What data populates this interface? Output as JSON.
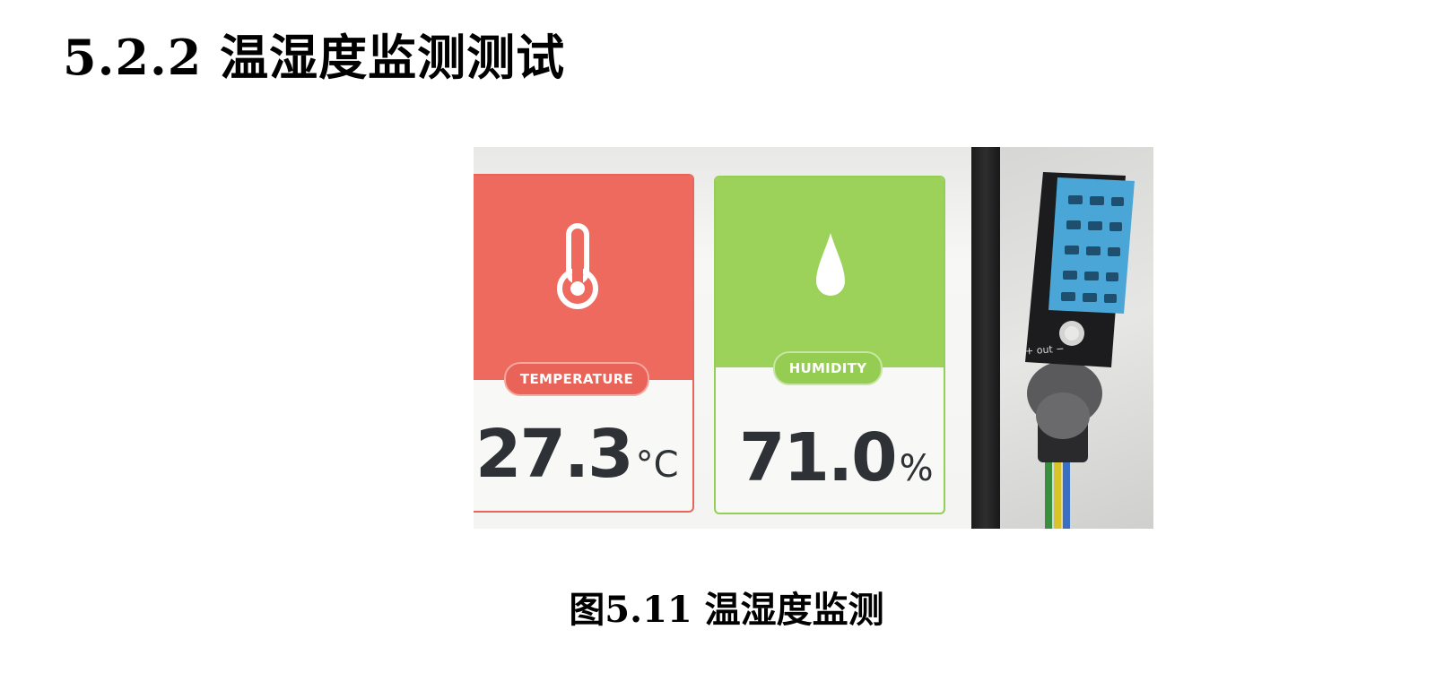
{
  "document": {
    "section_heading": "5.2.2 温湿度监测测试",
    "figure_caption": "图5.11 温湿度监测"
  },
  "figure": {
    "temperature_card": {
      "label": "TEMPERATURE",
      "value": "27.3",
      "unit": "°C",
      "icon": "thermometer-icon",
      "color": "#ee6a5e"
    },
    "humidity_card": {
      "label": "HUMIDITY",
      "value": "71.0",
      "unit": "%",
      "icon": "water-drop-icon",
      "color": "#9cd25a"
    },
    "sensor_board": {
      "pin_label": "+ out −",
      "sensor_color": "#4aa6d6"
    }
  }
}
